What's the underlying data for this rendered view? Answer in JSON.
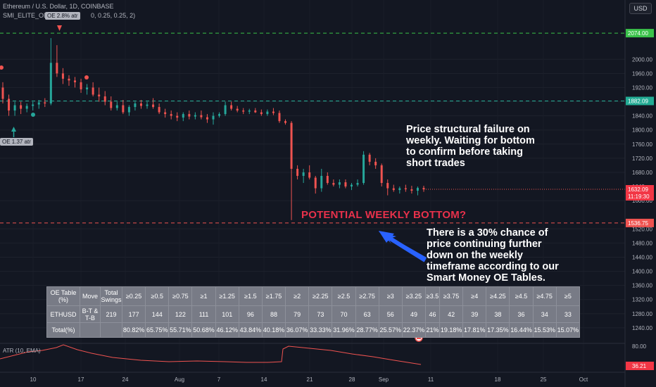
{
  "header": {
    "title": "Ethereum / U.S. Dollar, 1D, COINBASE",
    "indicator": "SMI_ELITE_OE (O",
    "indicator_tail": "0, 0.25, 0.25, 2)",
    "currency": "USD"
  },
  "bubbles": {
    "top": "OE 2.8% atr",
    "low": "OE 1.37 atr"
  },
  "annotations": {
    "structural": [
      "Price structural failure on",
      "weekly. Waiting for bottom",
      "to confirm before taking",
      "short trades"
    ],
    "bottom_title": "POTENTIAL WEEKLY BOTTOM?",
    "chance": [
      "There is a 30% chance of",
      "price continuing further",
      "down on the weekly",
      "timeframe according to our",
      "Smart Money OE Tables."
    ]
  },
  "oe_table": {
    "header": [
      "OE Table (%)",
      "Move",
      "Total Swings",
      "≥0.25",
      "≥0.5",
      "≥0.75",
      "≥1",
      "≥1.25",
      "≥1.5",
      "≥1.75",
      "≥2",
      "≥2.25",
      "≥2.5",
      "≥2.75",
      "≥3",
      "≥3.25",
      "≥3.5",
      "≥3.75",
      "≥4",
      "≥4.25",
      "≥4.5",
      "≥4.75",
      "≥5"
    ],
    "row1": [
      "ETHUSD",
      "B-T & T-B",
      "219",
      "177",
      "144",
      "122",
      "111",
      "101",
      "96",
      "88",
      "79",
      "73",
      "70",
      "63",
      "56",
      "49",
      "46",
      "42",
      "39",
      "38",
      "36",
      "34",
      "33"
    ],
    "row2": [
      "Total(%)",
      "",
      "",
      "80.82%",
      "65.75%",
      "55.71%",
      "50.68%",
      "46.12%",
      "43.84%",
      "40.18%",
      "36.07%",
      "33.33%",
      "31.96%",
      "28.77%",
      "25.57%",
      "22.37%",
      "21%",
      "19.18%",
      "17.81%",
      "17.35%",
      "16.44%",
      "15.53%",
      "15.07%"
    ]
  },
  "atr": {
    "label": "ATR (10, EMA)",
    "axis_max": "80.00",
    "current": "36.21"
  },
  "chart_data": {
    "type": "candlestick",
    "title": "Ethereum / U.S. Dollar, 1D, COINBASE",
    "ylim": [
      1200,
      2120
    ],
    "y_ticks": [
      2000,
      1960,
      1920,
      1880,
      1840,
      1800,
      1760,
      1720,
      1680,
      1600,
      1520,
      1480,
      1440,
      1400,
      1360,
      1320,
      1280,
      1240
    ],
    "x_ticks": [
      "10",
      "17",
      "24",
      "Aug",
      "7",
      "14",
      "21",
      "28",
      "Sep",
      "11",
      "18",
      "25",
      "Oct"
    ],
    "levels": [
      {
        "value": 2074.0,
        "label": "2074.00",
        "color": "#3ac24a"
      },
      {
        "value": 1882.09,
        "label": "1882.09",
        "color": "#22ab94"
      },
      {
        "value": 1536.75,
        "label": "1536.75",
        "color": "#ef5350"
      }
    ],
    "current_price": {
      "value": 1632.09,
      "label": "1632.09",
      "countdown": "11:19:30"
    },
    "partial_tick": "1640",
    "candles": [
      [
        1920,
        1935,
        1875,
        1888
      ],
      [
        1888,
        1900,
        1840,
        1855
      ],
      [
        1855,
        1880,
        1840,
        1870
      ],
      [
        1870,
        1880,
        1845,
        1860
      ],
      [
        1860,
        1875,
        1850,
        1868
      ],
      [
        1868,
        1880,
        1855,
        1872
      ],
      [
        1872,
        1885,
        1860,
        1878
      ],
      [
        1878,
        1890,
        1865,
        1875
      ],
      [
        1875,
        2060,
        1870,
        1990
      ],
      [
        1990,
        2040,
        1950,
        1960
      ],
      [
        1960,
        1975,
        1930,
        1945
      ],
      [
        1945,
        1955,
        1925,
        1940
      ],
      [
        1940,
        1950,
        1920,
        1935
      ],
      [
        1935,
        1945,
        1905,
        1915
      ],
      [
        1915,
        1930,
        1900,
        1920
      ],
      [
        1920,
        1935,
        1895,
        1900
      ],
      [
        1900,
        1920,
        1880,
        1895
      ],
      [
        1895,
        1910,
        1870,
        1880
      ],
      [
        1880,
        1895,
        1855,
        1862
      ],
      [
        1862,
        1880,
        1855,
        1870
      ],
      [
        1870,
        1885,
        1845,
        1850
      ],
      [
        1850,
        1870,
        1840,
        1865
      ],
      [
        1865,
        1880,
        1855,
        1875
      ],
      [
        1875,
        1885,
        1860,
        1868
      ],
      [
        1868,
        1880,
        1860,
        1872
      ],
      [
        1872,
        1890,
        1860,
        1865
      ],
      [
        1865,
        1875,
        1845,
        1850
      ],
      [
        1850,
        1860,
        1835,
        1845
      ],
      [
        1845,
        1855,
        1830,
        1840
      ],
      [
        1840,
        1850,
        1825,
        1835
      ],
      [
        1835,
        1850,
        1825,
        1845
      ],
      [
        1845,
        1855,
        1830,
        1838
      ],
      [
        1838,
        1850,
        1830,
        1842
      ],
      [
        1842,
        1855,
        1830,
        1836
      ],
      [
        1836,
        1845,
        1820,
        1830
      ],
      [
        1830,
        1850,
        1815,
        1840
      ],
      [
        1840,
        1850,
        1835,
        1845
      ],
      [
        1845,
        1880,
        1840,
        1870
      ],
      [
        1870,
        1880,
        1855,
        1860
      ],
      [
        1860,
        1868,
        1850,
        1855
      ],
      [
        1855,
        1862,
        1845,
        1852
      ],
      [
        1852,
        1860,
        1845,
        1855
      ],
      [
        1855,
        1862,
        1848,
        1850
      ],
      [
        1850,
        1858,
        1840,
        1845
      ],
      [
        1845,
        1858,
        1840,
        1852
      ],
      [
        1852,
        1862,
        1842,
        1848
      ],
      [
        1848,
        1855,
        1820,
        1825
      ],
      [
        1825,
        1830,
        1815,
        1820
      ],
      [
        1820,
        1825,
        1545,
        1690
      ],
      [
        1690,
        1700,
        1660,
        1670
      ],
      [
        1670,
        1690,
        1650,
        1680
      ],
      [
        1680,
        1700,
        1660,
        1665
      ],
      [
        1665,
        1670,
        1620,
        1635
      ],
      [
        1635,
        1690,
        1625,
        1670
      ],
      [
        1670,
        1680,
        1645,
        1650
      ],
      [
        1650,
        1660,
        1640,
        1645
      ],
      [
        1645,
        1660,
        1635,
        1652
      ],
      [
        1652,
        1660,
        1635,
        1640
      ],
      [
        1640,
        1650,
        1630,
        1645
      ],
      [
        1645,
        1660,
        1640,
        1650
      ],
      [
        1650,
        1740,
        1645,
        1730
      ],
      [
        1730,
        1735,
        1700,
        1710
      ],
      [
        1710,
        1720,
        1690,
        1700
      ],
      [
        1700,
        1705,
        1640,
        1650
      ],
      [
        1650,
        1660,
        1615,
        1635
      ],
      [
        1635,
        1645,
        1625,
        1630
      ],
      [
        1630,
        1640,
        1620,
        1635
      ],
      [
        1635,
        1645,
        1625,
        1632
      ],
      [
        1632,
        1642,
        1620,
        1628
      ],
      [
        1628,
        1640,
        1615,
        1636
      ],
      [
        1636,
        1642,
        1625,
        1632
      ]
    ]
  }
}
